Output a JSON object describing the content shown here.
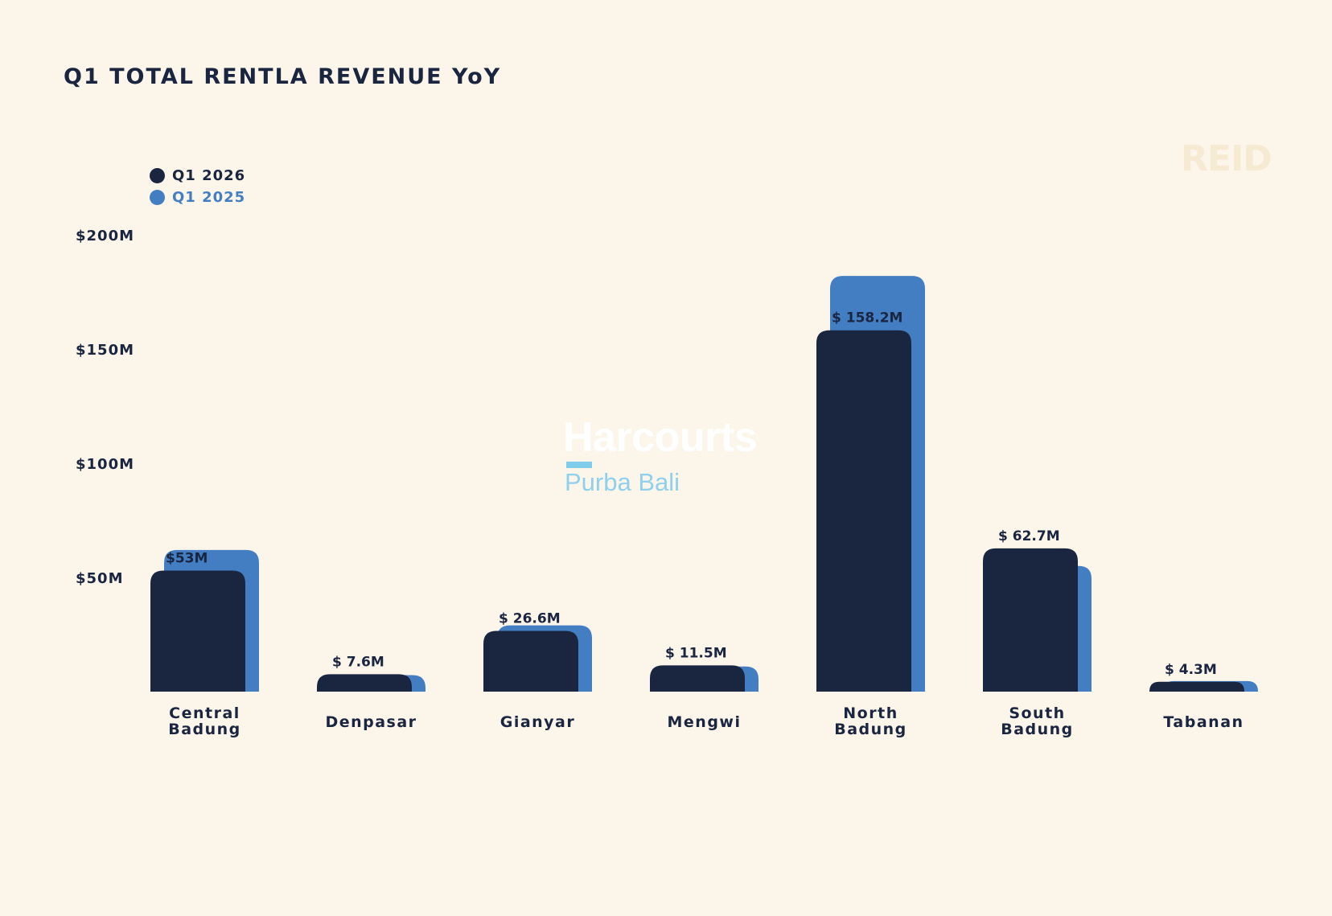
{
  "title": "Q1 TOTAL RENTLA REVENUE YoY",
  "watermark": "REID",
  "logo": {
    "name": "Harcourts",
    "subtitle": "Purba Bali"
  },
  "colors": {
    "background": "#FCF5EA",
    "q1_2026": "#1A2540",
    "q1_2025": "#437EC3"
  },
  "chart_data": {
    "type": "bar",
    "title": "Q1 TOTAL RENTLA REVENUE YoY",
    "categories": [
      [
        "Central",
        "Badung"
      ],
      [
        "Denpasar"
      ],
      [
        "Gianyar"
      ],
      [
        "Mengwi"
      ],
      [
        "North",
        "Badung"
      ],
      [
        "South",
        "Badung"
      ],
      [
        "Tabanan"
      ]
    ],
    "series": [
      {
        "name": "Q1 2026",
        "color": "#1A2540",
        "values": [
          53,
          7.6,
          26.6,
          11.5,
          158.2,
          62.7,
          4.3
        ],
        "labels": [
          "$53M",
          "$ 7.6M",
          "$ 26.6M",
          "$ 11.5M",
          "$ 158.2M",
          "$ 62.7M",
          "$ 4.3M"
        ]
      },
      {
        "name": "Q1 2025",
        "color": "#437EC3",
        "values": [
          62,
          7.2,
          29,
          11,
          182,
          55,
          4.6
        ]
      }
    ],
    "yticks": [
      {
        "value": 50,
        "label": "$50M"
      },
      {
        "value": 100,
        "label": "$100M"
      },
      {
        "value": 150,
        "label": "$150M"
      },
      {
        "value": 200,
        "label": "$200M"
      }
    ],
    "ylim": [
      0,
      200
    ],
    "grid": false,
    "legend_position": "top-left"
  }
}
